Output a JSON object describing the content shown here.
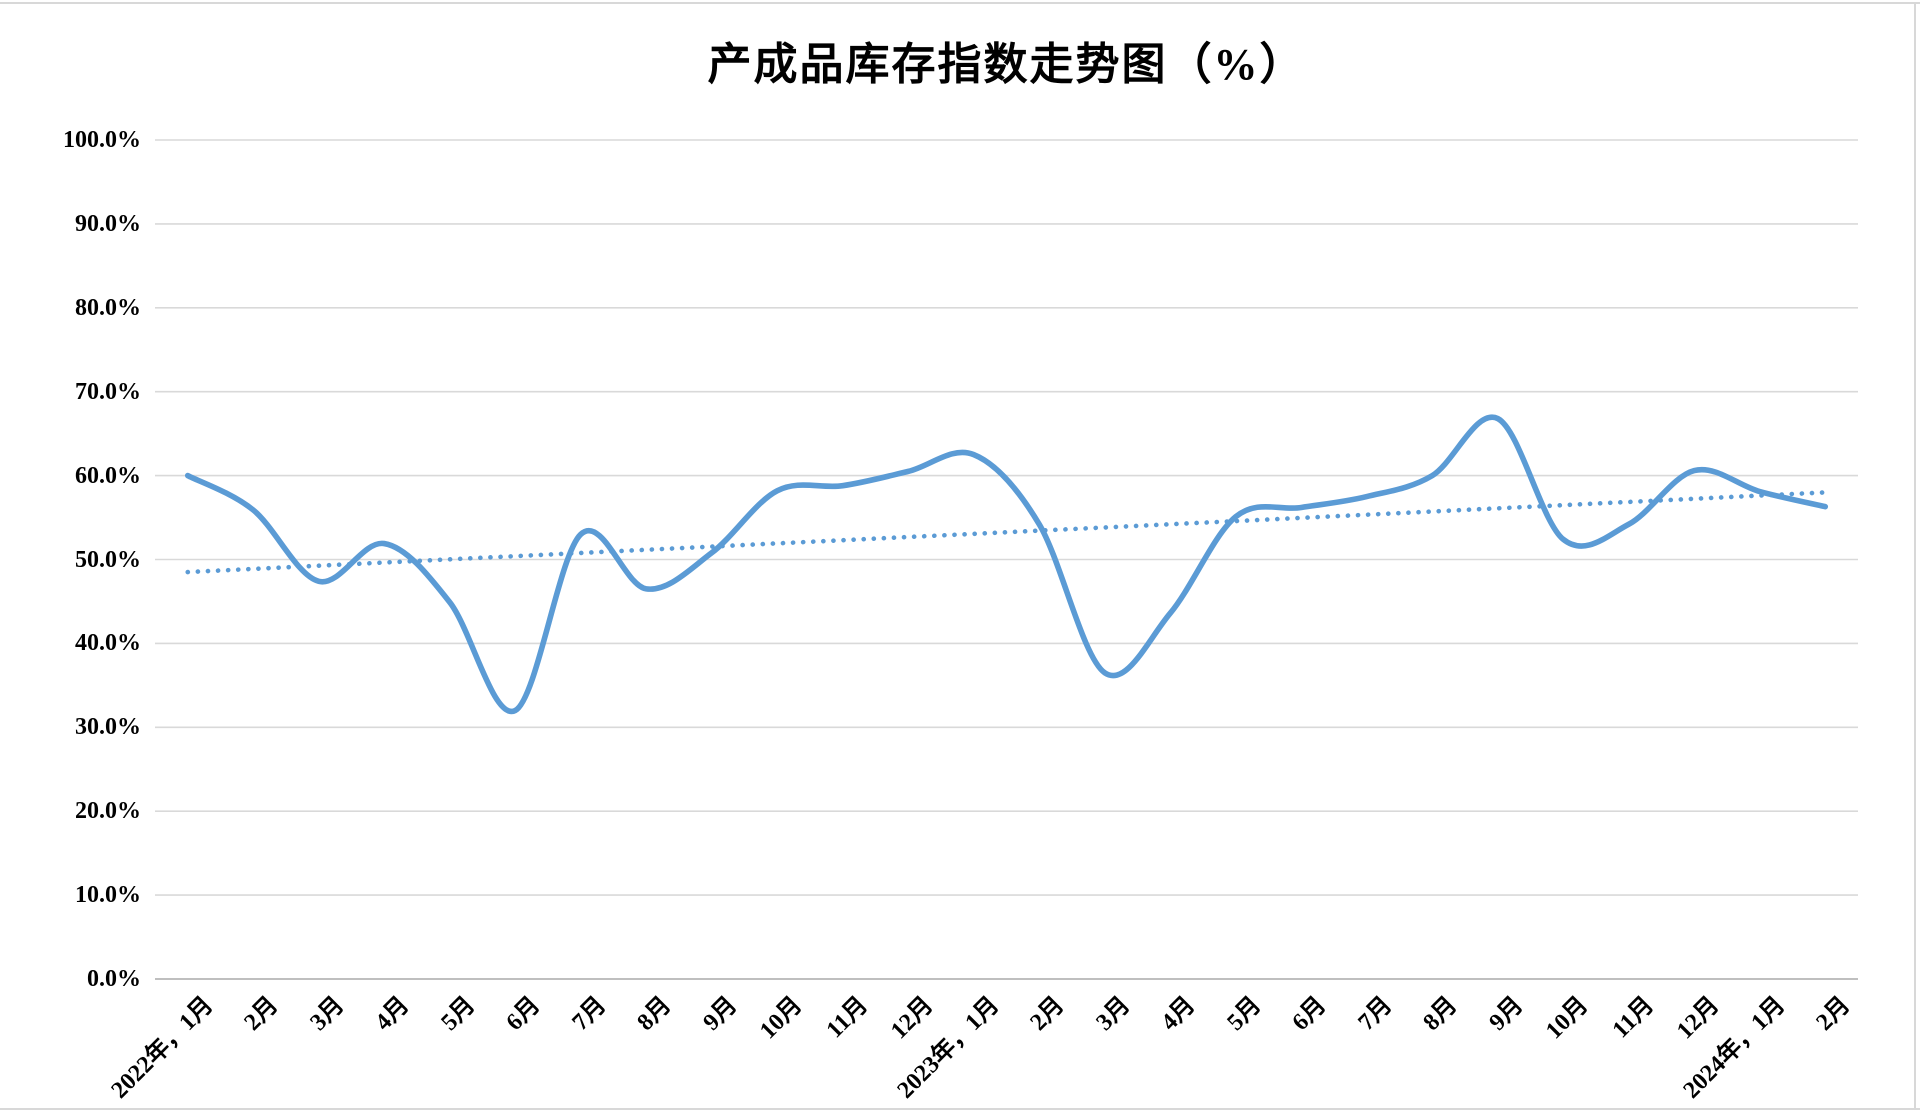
{
  "window": {
    "background": "#ffffff",
    "border_color": "#d8d8d8"
  },
  "chart_data": {
    "type": "line",
    "title": "产成品库存指数走势图（%）",
    "categories": [
      "2022年，1月",
      "2月",
      "3月",
      "4月",
      "5月",
      "6月",
      "7月",
      "8月",
      "9月",
      "10月",
      "11月",
      "12月",
      "2023年，1月",
      "2月",
      "3月",
      "4月",
      "5月",
      "6月",
      "7月",
      "8月",
      "9月",
      "10月",
      "11月",
      "12月",
      "2024年，1月",
      "2月"
    ],
    "series": [
      {
        "name": "产成品库存指数",
        "line_style": "smooth",
        "color": "#5B9BD5",
        "values": [
          60.0,
          55.9,
          47.4,
          51.9,
          44.9,
          32.0,
          53.0,
          46.5,
          50.8,
          58.2,
          58.8,
          60.5,
          62.5,
          54.2,
          36.5,
          43.6,
          55.1,
          56.2,
          57.5,
          60.0,
          66.8,
          52.4,
          54.2,
          60.6,
          58.1,
          56.3
        ]
      }
    ],
    "trendline": {
      "style": "dotted",
      "color": "#5B9BD5",
      "start_value": 48.5,
      "end_value": 58.0
    },
    "xlabel": "",
    "ylabel": "",
    "ylim": [
      0,
      100
    ],
    "y_step": 10,
    "y_ticks": [
      "100.0%",
      "90.0%",
      "80.0%",
      "70.0%",
      "60.0%",
      "50.0%",
      "40.0%",
      "30.0%",
      "20.0%",
      "10.0%",
      "0.0%"
    ],
    "grid": true,
    "gridline_color": "#d9d9d9",
    "axis_line_color": "#bfbfbf",
    "text_color": "#000000",
    "legend": "none"
  }
}
